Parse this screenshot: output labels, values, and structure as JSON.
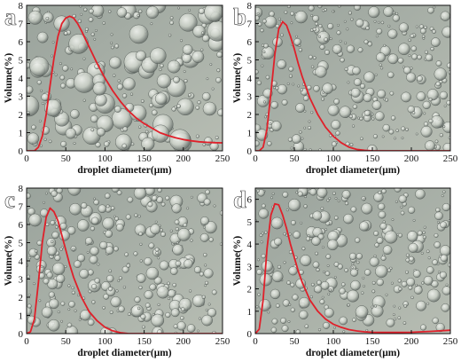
{
  "chart_data": [
    {
      "panel": "a",
      "type": "line",
      "xlabel": "droplet diameter(μm)",
      "ylabel": "Volume(%)",
      "xlim": [
        0,
        250
      ],
      "ylim": [
        0,
        8
      ],
      "xticks": [
        "0",
        "50",
        "100",
        "150",
        "200",
        "250"
      ],
      "yticks": [
        "0",
        "1",
        "2",
        "3",
        "4",
        "5",
        "6",
        "7",
        "8"
      ],
      "curve_color": "#e0202a",
      "series": [
        {
          "x": [
            0,
            10,
            15,
            20,
            25,
            30,
            35,
            40,
            45,
            50,
            55,
            60,
            65,
            70,
            80,
            90,
            100,
            110,
            120,
            130,
            140,
            150,
            160,
            170,
            180,
            190,
            200,
            210,
            220,
            230,
            240,
            250
          ],
          "values": [
            0,
            0,
            0.2,
            0.8,
            2.0,
            3.6,
            5.1,
            6.3,
            7.0,
            7.3,
            7.4,
            7.3,
            7.0,
            6.6,
            5.7,
            4.8,
            4.0,
            3.3,
            2.7,
            2.2,
            1.8,
            1.5,
            1.25,
            1.0,
            0.85,
            0.72,
            0.62,
            0.55,
            0.5,
            0.47,
            0.45,
            0.44
          ]
        }
      ]
    },
    {
      "panel": "b",
      "type": "line",
      "xlabel": "droplet diameter(μm)",
      "ylabel": "Volume(%)",
      "xlim": [
        0,
        250
      ],
      "ylim": [
        0,
        8
      ],
      "xticks": [
        "0",
        "50",
        "100",
        "150",
        "200",
        "250"
      ],
      "yticks": [
        "0",
        "1",
        "2",
        "3",
        "4",
        "5",
        "6",
        "7",
        "8"
      ],
      "curve_color": "#e0202a",
      "series": [
        {
          "x": [
            0,
            5,
            10,
            15,
            20,
            25,
            30,
            35,
            40,
            45,
            50,
            55,
            60,
            70,
            80,
            90,
            100,
            110,
            120,
            130,
            140,
            150,
            175,
            200,
            225,
            250
          ],
          "values": [
            0,
            0,
            0.2,
            1.2,
            3.2,
            5.3,
            6.7,
            7.1,
            6.9,
            6.3,
            5.6,
            4.8,
            4.1,
            2.9,
            2.0,
            1.3,
            0.8,
            0.45,
            0.2,
            0.08,
            0.03,
            0,
            0,
            0,
            0,
            0
          ]
        }
      ]
    },
    {
      "panel": "c",
      "type": "line",
      "xlabel": "droplet diameter(μm)",
      "ylabel": "Volume(%)",
      "xlim": [
        0,
        250
      ],
      "ylim": [
        0,
        8
      ],
      "xticks": [
        "0",
        "50",
        "100",
        "150",
        "200",
        "250"
      ],
      "yticks": [
        "0",
        "1",
        "2",
        "3",
        "4",
        "5",
        "6",
        "7",
        "8"
      ],
      "curve_color": "#e0202a",
      "series": [
        {
          "x": [
            0,
            5,
            10,
            15,
            20,
            25,
            30,
            35,
            40,
            45,
            50,
            55,
            60,
            70,
            80,
            90,
            100,
            110,
            120,
            130,
            140,
            150,
            175,
            200,
            225,
            250
          ],
          "values": [
            0,
            0.1,
            0.8,
            2.8,
            5.0,
            6.4,
            6.9,
            6.7,
            6.2,
            5.4,
            4.6,
            3.8,
            3.1,
            2.0,
            1.2,
            0.7,
            0.35,
            0.15,
            0.05,
            0,
            0,
            0,
            0,
            0,
            0,
            0
          ]
        }
      ]
    },
    {
      "panel": "d",
      "type": "line",
      "xlabel": "droplet diameter(μm)",
      "ylabel": "Volume(%)",
      "xlim": [
        0,
        250
      ],
      "ylim": [
        0,
        6.5
      ],
      "xticks": [
        "0",
        "50",
        "100",
        "150",
        "200",
        "250"
      ],
      "yticks": [
        "0",
        "1",
        "2",
        "3",
        "4",
        "5",
        "6"
      ],
      "curve_color": "#e0202a",
      "series": [
        {
          "x": [
            0,
            5,
            10,
            15,
            20,
            25,
            30,
            35,
            40,
            45,
            50,
            55,
            60,
            70,
            80,
            90,
            100,
            110,
            120,
            130,
            140,
            150,
            175,
            200,
            225,
            250
          ],
          "values": [
            0,
            0.2,
            1.5,
            3.8,
            5.3,
            5.8,
            5.75,
            5.3,
            4.7,
            4.0,
            3.4,
            2.8,
            2.3,
            1.5,
            1.0,
            0.65,
            0.42,
            0.28,
            0.18,
            0.12,
            0.08,
            0.06,
            0.05,
            0.06,
            0.1,
            0.15
          ]
        }
      ]
    }
  ]
}
